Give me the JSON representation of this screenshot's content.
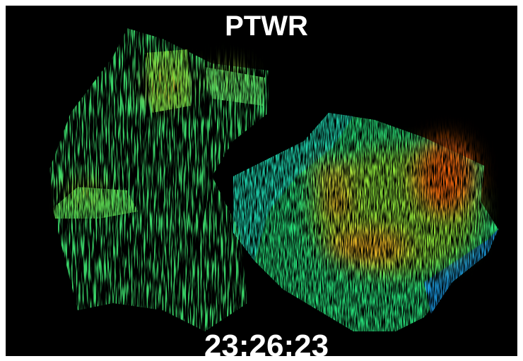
{
  "title": "PTWR",
  "timestamp": "23:26:23"
}
